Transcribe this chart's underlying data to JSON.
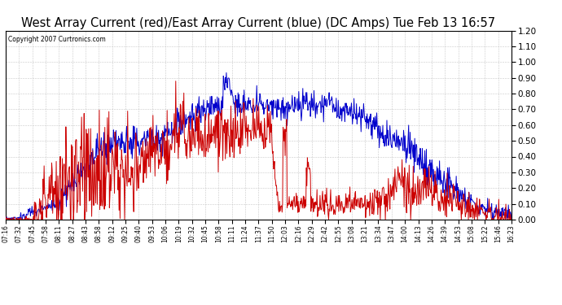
{
  "title": "West Array Current (red)/East Array Current (blue) (DC Amps) Tue Feb 13 16:57",
  "copyright": "Copyright 2007 Curtronics.com",
  "ylabel_right_min": 0.0,
  "ylabel_right_max": 1.2,
  "ylabel_right_step": 0.1,
  "background_color": "#ffffff",
  "grid_color": "#bbbbbb",
  "plot_bg_color": "#ffffff",
  "title_fontsize": 10.5,
  "tick_labels": [
    "07:16",
    "07:32",
    "07:45",
    "07:58",
    "08:11",
    "08:27",
    "08:43",
    "08:58",
    "09:12",
    "09:25",
    "09:40",
    "09:53",
    "10:06",
    "10:19",
    "10:32",
    "10:45",
    "10:58",
    "11:11",
    "11:24",
    "11:37",
    "11:50",
    "12:03",
    "12:16",
    "12:29",
    "12:42",
    "12:55",
    "13:08",
    "13:21",
    "13:34",
    "13:47",
    "14:00",
    "14:13",
    "14:26",
    "14:39",
    "14:53",
    "15:08",
    "15:22",
    "15:46",
    "16:23"
  ],
  "red_color": "#cc0000",
  "blue_color": "#0000cc",
  "border_color": "#000000",
  "fig_width": 6.9,
  "fig_height": 3.75,
  "dpi": 100
}
